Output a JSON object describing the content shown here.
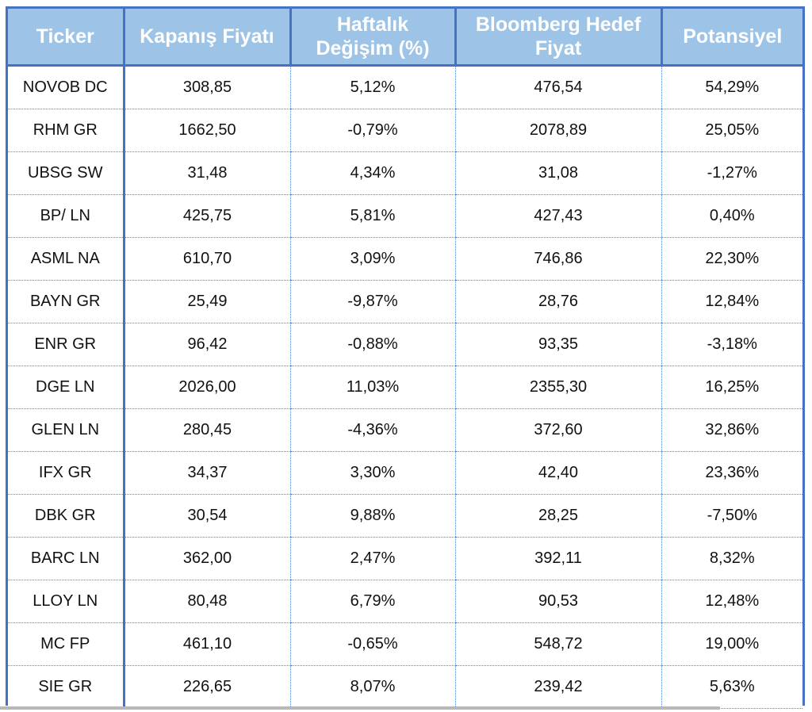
{
  "table": {
    "headers": [
      "Ticker",
      "Kapanış Fiyatı",
      "Haftalık Değişim (%)",
      "Bloomberg Hedef Fiyat",
      "Potansiyel"
    ],
    "rows": [
      [
        "NOVOB DC",
        "308,85",
        "5,12%",
        "476,54",
        "54,29%"
      ],
      [
        "RHM GR",
        "1662,50",
        "-0,79%",
        "2078,89",
        "25,05%"
      ],
      [
        "UBSG SW",
        "31,48",
        "4,34%",
        "31,08",
        "-1,27%"
      ],
      [
        "BP/ LN",
        "425,75",
        "5,81%",
        "427,43",
        "0,40%"
      ],
      [
        "ASML NA",
        "610,70",
        "3,09%",
        "746,86",
        "22,30%"
      ],
      [
        "BAYN GR",
        "25,49",
        "-9,87%",
        "28,76",
        "12,84%"
      ],
      [
        "ENR GR",
        "96,42",
        "-0,88%",
        "93,35",
        "-3,18%"
      ],
      [
        "DGE LN",
        "2026,00",
        "11,03%",
        "2355,30",
        "16,25%"
      ],
      [
        "GLEN LN",
        "280,45",
        "-4,36%",
        "372,60",
        "32,86%"
      ],
      [
        "IFX GR",
        "34,37",
        "3,30%",
        "42,40",
        "23,36%"
      ],
      [
        "DBK GR",
        "30,54",
        "9,88%",
        "28,25",
        "-7,50%"
      ],
      [
        "BARC LN",
        "362,00",
        "2,47%",
        "392,11",
        "8,32%"
      ],
      [
        "LLOY LN",
        "80,48",
        "6,79%",
        "90,53",
        "12,48%"
      ],
      [
        "MC FP",
        "461,10",
        "-0,65%",
        "548,72",
        "19,00%"
      ],
      [
        "SIE GR",
        "226,65",
        "8,07%",
        "239,42",
        "5,63%"
      ]
    ]
  },
  "colors": {
    "header_fill": "#9dc3e6",
    "border": "#4472c4",
    "header_text": "#ffffff"
  }
}
